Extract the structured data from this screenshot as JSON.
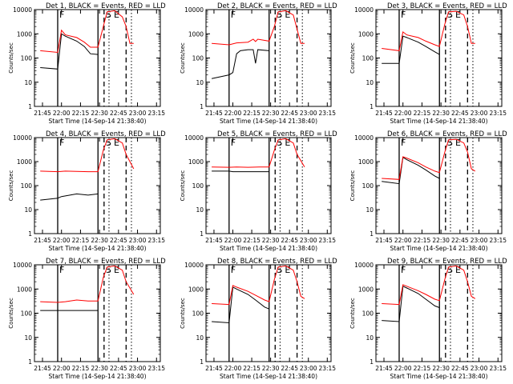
{
  "chart_data": {
    "type": "line",
    "layout": "grid-3x3",
    "title_pattern": "Det N, BLACK = Events, RED = LLD",
    "xlabel": "Start Time (14-Sep-14 21:38:40)",
    "ylabel": "Counts/sec",
    "yscale": "log",
    "ylim": [
      1,
      10000
    ],
    "y_ticks": [
      "1",
      "10",
      "100",
      "1000",
      "10000"
    ],
    "x_ticks": [
      "21:45",
      "22:00",
      "22:15",
      "22:30",
      "22:45",
      "23:00",
      "23:15"
    ],
    "series_colors": {
      "events": "#000000",
      "lld": "#ff0000"
    },
    "interval_letters": [
      "F",
      "S",
      "E"
    ],
    "panels": [
      {
        "title": "Det 1, BLACK = Events, RED = LLD",
        "events": [
          [
            21.72,
            40
          ],
          [
            21.95,
            35
          ],
          [
            22.0,
            1000
          ],
          [
            22.05,
            800
          ],
          [
            22.2,
            500
          ],
          [
            22.3,
            300
          ],
          [
            22.38,
            150
          ],
          [
            22.48,
            140
          ]
        ],
        "lld": [
          [
            21.72,
            200
          ],
          [
            21.95,
            170
          ],
          [
            22.0,
            1400
          ],
          [
            22.05,
            900
          ],
          [
            22.2,
            700
          ],
          [
            22.3,
            450
          ],
          [
            22.38,
            280
          ],
          [
            22.48,
            280
          ],
          [
            22.55,
            2000
          ],
          [
            22.6,
            8000
          ],
          [
            22.7,
            9000
          ],
          [
            22.8,
            5000
          ],
          [
            22.85,
            2000
          ],
          [
            22.9,
            400
          ],
          [
            22.95,
            400
          ]
        ]
      },
      {
        "title": "Det 2, BLACK = Events, RED = LLD",
        "events": [
          [
            21.72,
            14
          ],
          [
            21.95,
            20
          ],
          [
            22.0,
            25
          ],
          [
            22.05,
            150
          ],
          [
            22.1,
            200
          ],
          [
            22.2,
            220
          ],
          [
            22.27,
            220
          ],
          [
            22.3,
            60
          ],
          [
            22.33,
            220
          ],
          [
            22.48,
            200
          ]
        ],
        "lld": [
          [
            21.72,
            400
          ],
          [
            21.95,
            350
          ],
          [
            22.05,
            420
          ],
          [
            22.2,
            450
          ],
          [
            22.27,
            600
          ],
          [
            22.3,
            480
          ],
          [
            22.33,
            600
          ],
          [
            22.48,
            500
          ],
          [
            22.55,
            2000
          ],
          [
            22.6,
            8000
          ],
          [
            22.7,
            9000
          ],
          [
            22.8,
            6000
          ],
          [
            22.9,
            400
          ],
          [
            22.95,
            400
          ]
        ]
      },
      {
        "title": "Det 3, BLACK = Events, RED = LLD",
        "events": [
          [
            21.72,
            60
          ],
          [
            21.95,
            60
          ],
          [
            22.0,
            800
          ],
          [
            22.05,
            700
          ],
          [
            22.2,
            450
          ],
          [
            22.3,
            300
          ],
          [
            22.42,
            180
          ],
          [
            22.48,
            140
          ]
        ],
        "lld": [
          [
            21.72,
            250
          ],
          [
            21.95,
            200
          ],
          [
            22.0,
            1200
          ],
          [
            22.05,
            900
          ],
          [
            22.2,
            700
          ],
          [
            22.3,
            500
          ],
          [
            22.42,
            350
          ],
          [
            22.48,
            300
          ],
          [
            22.55,
            2500
          ],
          [
            22.6,
            8000
          ],
          [
            22.7,
            8500
          ],
          [
            22.8,
            6000
          ],
          [
            22.85,
            2000
          ],
          [
            22.9,
            400
          ],
          [
            22.95,
            400
          ]
        ]
      },
      {
        "title": "Det 4, BLACK = Events, RED = LLD",
        "events": [
          [
            21.72,
            25
          ],
          [
            21.95,
            30
          ],
          [
            22.0,
            35
          ],
          [
            22.2,
            45
          ],
          [
            22.35,
            40
          ],
          [
            22.48,
            45
          ]
        ],
        "lld": [
          [
            21.72,
            400
          ],
          [
            21.95,
            380
          ],
          [
            22.05,
            400
          ],
          [
            22.2,
            390
          ],
          [
            22.35,
            380
          ],
          [
            22.48,
            380
          ],
          [
            22.55,
            3000
          ],
          [
            22.6,
            8000
          ],
          [
            22.7,
            9000
          ],
          [
            22.8,
            6000
          ],
          [
            22.85,
            2000
          ],
          [
            22.95,
            500
          ]
        ]
      },
      {
        "title": "Det 5, BLACK = Events, RED = LLD",
        "events": [
          [
            21.72,
            400
          ],
          [
            21.95,
            400
          ],
          [
            22.0,
            380
          ],
          [
            22.2,
            380
          ],
          [
            22.35,
            380
          ],
          [
            22.48,
            380
          ]
        ],
        "lld": [
          [
            21.72,
            600
          ],
          [
            21.95,
            580
          ],
          [
            22.05,
            600
          ],
          [
            22.2,
            580
          ],
          [
            22.35,
            600
          ],
          [
            22.48,
            600
          ],
          [
            22.55,
            3000
          ],
          [
            22.6,
            8000
          ],
          [
            22.7,
            9000
          ],
          [
            22.8,
            6000
          ],
          [
            22.85,
            2000
          ],
          [
            22.95,
            600
          ]
        ]
      },
      {
        "title": "Det 6, BLACK = Events, RED = LLD",
        "events": [
          [
            21.72,
            150
          ],
          [
            21.95,
            120
          ],
          [
            22.0,
            1500
          ],
          [
            22.05,
            1200
          ],
          [
            22.2,
            700
          ],
          [
            22.3,
            450
          ],
          [
            22.42,
            250
          ],
          [
            22.48,
            200
          ]
        ],
        "lld": [
          [
            21.72,
            200
          ],
          [
            21.95,
            180
          ],
          [
            22.0,
            1600
          ],
          [
            22.05,
            1400
          ],
          [
            22.2,
            900
          ],
          [
            22.3,
            600
          ],
          [
            22.42,
            400
          ],
          [
            22.48,
            350
          ],
          [
            22.55,
            2500
          ],
          [
            22.6,
            8000
          ],
          [
            22.7,
            8500
          ],
          [
            22.8,
            6000
          ],
          [
            22.85,
            2500
          ],
          [
            22.9,
            500
          ],
          [
            22.95,
            400
          ]
        ]
      },
      {
        "title": "Det 7, BLACK = Events, RED = LLD",
        "events": [
          [
            21.72,
            130
          ],
          [
            21.95,
            130
          ],
          [
            22.0,
            130
          ],
          [
            22.2,
            130
          ],
          [
            22.35,
            130
          ],
          [
            22.48,
            130
          ]
        ],
        "lld": [
          [
            21.72,
            300
          ],
          [
            21.95,
            280
          ],
          [
            22.05,
            300
          ],
          [
            22.2,
            350
          ],
          [
            22.35,
            320
          ],
          [
            22.48,
            320
          ],
          [
            22.55,
            3000
          ],
          [
            22.6,
            8000
          ],
          [
            22.7,
            9000
          ],
          [
            22.8,
            6000
          ],
          [
            22.85,
            2000
          ],
          [
            22.95,
            600
          ]
        ]
      },
      {
        "title": "Det 8, BLACK = Events, RED = LLD",
        "events": [
          [
            21.72,
            45
          ],
          [
            21.95,
            40
          ],
          [
            22.0,
            1200
          ],
          [
            22.05,
            1000
          ],
          [
            22.2,
            600
          ],
          [
            22.3,
            350
          ],
          [
            22.42,
            180
          ],
          [
            22.48,
            150
          ]
        ],
        "lld": [
          [
            21.72,
            250
          ],
          [
            21.95,
            230
          ],
          [
            22.0,
            1400
          ],
          [
            22.05,
            1200
          ],
          [
            22.2,
            800
          ],
          [
            22.3,
            550
          ],
          [
            22.42,
            350
          ],
          [
            22.48,
            300
          ],
          [
            22.55,
            2500
          ],
          [
            22.6,
            8000
          ],
          [
            22.7,
            9000
          ],
          [
            22.8,
            6000
          ],
          [
            22.85,
            2000
          ],
          [
            22.9,
            500
          ],
          [
            22.95,
            400
          ]
        ]
      },
      {
        "title": "Det 9, BLACK = Events, RED = LLD",
        "events": [
          [
            21.72,
            50
          ],
          [
            21.95,
            45
          ],
          [
            22.0,
            1300
          ],
          [
            22.05,
            1100
          ],
          [
            22.2,
            650
          ],
          [
            22.3,
            380
          ],
          [
            22.42,
            200
          ],
          [
            22.48,
            170
          ]
        ],
        "lld": [
          [
            21.72,
            250
          ],
          [
            21.95,
            230
          ],
          [
            22.0,
            1500
          ],
          [
            22.05,
            1300
          ],
          [
            22.2,
            850
          ],
          [
            22.3,
            600
          ],
          [
            22.42,
            380
          ],
          [
            22.48,
            330
          ],
          [
            22.55,
            2500
          ],
          [
            22.6,
            8000
          ],
          [
            22.7,
            9000
          ],
          [
            22.8,
            6000
          ],
          [
            22.85,
            2000
          ],
          [
            22.9,
            500
          ],
          [
            22.95,
            400
          ]
        ]
      }
    ]
  }
}
